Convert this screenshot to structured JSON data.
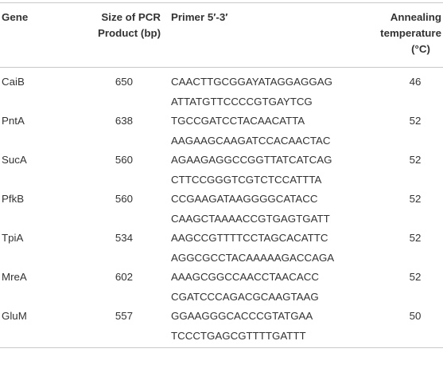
{
  "headers": {
    "gene": "Gene",
    "size_line1": "Size of PCR",
    "size_line2": "Product (bp)",
    "primer": "Primer 5′-3′",
    "temp_line1": "Annealing",
    "temp_line2": "temperature",
    "temp_line3": "(°C)"
  },
  "rows": [
    {
      "gene": "CaiB",
      "size": "650",
      "primer1": "CAACTTGCGGAYATAGGAGGAG",
      "primer2": "ATTATGTTCCCCGTGAYTCG",
      "temp": "46"
    },
    {
      "gene": "PntA",
      "size": "638",
      "primer1": "TGCCGATCCTACAACATTA",
      "primer2": "AAGAAGCAAGATCCACAACTAC",
      "temp": "52"
    },
    {
      "gene": "SucA",
      "size": "560",
      "primer1": "AGAAGAGGCCGGTTATCATCAG",
      "primer2": "CTTCCGGGTCGTCTCCATTTA",
      "temp": "52"
    },
    {
      "gene": "PfkB",
      "size": "560",
      "primer1": "CCGAAGATAAGGGGCATACC",
      "primer2": "CAAGCTAAAACCGTGAGTGATT",
      "temp": "52"
    },
    {
      "gene": "TpiA",
      "size": "534",
      "primer1": "AAGCCGTTTTCCTAGCACATTC",
      "primer2": "AGGCGCCTACAAAAAGACCAGA",
      "temp": "52"
    },
    {
      "gene": "MreA",
      "size": "602",
      "primer1": "AAAGCGGCCAACCTAACACC",
      "primer2": "CGATCCCAGACGCAAGTAAG",
      "temp": "52"
    },
    {
      "gene": "GluM",
      "size": "557",
      "primer1": "GGAAGGGCACCCGTATGAA",
      "primer2": "TCCCTGAGCGTTTTGATTT",
      "temp": "50"
    }
  ]
}
